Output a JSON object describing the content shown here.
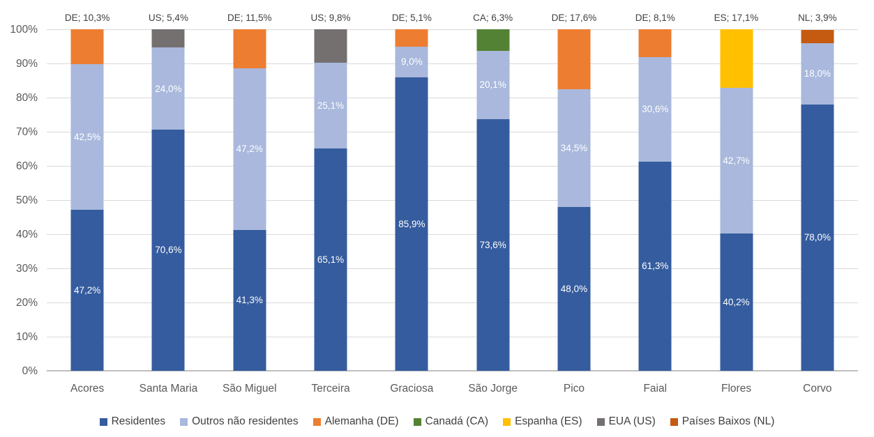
{
  "chart_data": {
    "type": "bar",
    "stacked": true,
    "percent_stacked": true,
    "title": "",
    "xlabel": "",
    "ylabel": "",
    "grid": true,
    "legend_position": "bottom",
    "y_axis": {
      "min": 0,
      "max": 100,
      "ticks": [
        {
          "value": 0,
          "label": "0%"
        },
        {
          "value": 10,
          "label": "10%"
        },
        {
          "value": 20,
          "label": "20%"
        },
        {
          "value": 30,
          "label": "30%"
        },
        {
          "value": 40,
          "label": "40%"
        },
        {
          "value": 50,
          "label": "50%"
        },
        {
          "value": 60,
          "label": "60%"
        },
        {
          "value": 70,
          "label": "70%"
        },
        {
          "value": 80,
          "label": "80%"
        },
        {
          "value": 90,
          "label": "90%"
        },
        {
          "value": 100,
          "label": "100%"
        }
      ]
    },
    "series": [
      {
        "name": "Residentes",
        "color": "#355C9E"
      },
      {
        "name": "Outros não residentes",
        "color": "#A9B8DC"
      },
      {
        "name": "Alemanha (DE)",
        "color": "#ED7D31"
      },
      {
        "name": "Canadá (CA)",
        "color": "#548235"
      },
      {
        "name": "Espanha (ES)",
        "color": "#FFC000"
      },
      {
        "name": "EUA (US)",
        "color": "#757070"
      },
      {
        "name": "Países Baixos (NL)",
        "color": "#C55A11"
      }
    ],
    "categories": [
      "Acores",
      "Santa Maria",
      "São Miguel",
      "Terceira",
      "Graciosa",
      "São Jorge",
      "Pico",
      "Faial",
      "Flores",
      "Corvo"
    ],
    "bars": [
      {
        "category": "Acores",
        "top_label": "DE; 10,3%",
        "segments": [
          {
            "series": "Residentes",
            "value": 47.2,
            "label": "47,2%"
          },
          {
            "series": "Outros não residentes",
            "value": 42.5,
            "label": "42,5%"
          },
          {
            "series": "Alemanha (DE)",
            "value": 10.3
          }
        ]
      },
      {
        "category": "Santa Maria",
        "top_label": "US; 5,4%",
        "segments": [
          {
            "series": "Residentes",
            "value": 70.6,
            "label": "70,6%"
          },
          {
            "series": "Outros não residentes",
            "value": 24.0,
            "label": "24,0%"
          },
          {
            "series": "EUA (US)",
            "value": 5.4
          }
        ]
      },
      {
        "category": "São Miguel",
        "top_label": "DE; 11,5%",
        "segments": [
          {
            "series": "Residentes",
            "value": 41.3,
            "label": "41,3%"
          },
          {
            "series": "Outros não residentes",
            "value": 47.2,
            "label": "47,2%"
          },
          {
            "series": "Alemanha (DE)",
            "value": 11.5
          }
        ]
      },
      {
        "category": "Terceira",
        "top_label": "US; 9,8%",
        "segments": [
          {
            "series": "Residentes",
            "value": 65.1,
            "label": "65,1%"
          },
          {
            "series": "Outros não residentes",
            "value": 25.1,
            "label": "25,1%"
          },
          {
            "series": "EUA (US)",
            "value": 9.8
          }
        ]
      },
      {
        "category": "Graciosa",
        "top_label": "DE; 5,1%",
        "segments": [
          {
            "series": "Residentes",
            "value": 85.9,
            "label": "85,9%"
          },
          {
            "series": "Outros não residentes",
            "value": 9.0,
            "label": "9,0%"
          },
          {
            "series": "Alemanha (DE)",
            "value": 5.1
          }
        ]
      },
      {
        "category": "São Jorge",
        "top_label": "CA; 6,3%",
        "segments": [
          {
            "series": "Residentes",
            "value": 73.6,
            "label": "73,6%"
          },
          {
            "series": "Outros não residentes",
            "value": 20.1,
            "label": "20,1%"
          },
          {
            "series": "Canadá (CA)",
            "value": 6.3
          }
        ]
      },
      {
        "category": "Pico",
        "top_label": "DE; 17,6%",
        "segments": [
          {
            "series": "Residentes",
            "value": 48.0,
            "label": "48,0%"
          },
          {
            "series": "Outros não residentes",
            "value": 34.5,
            "label": "34,5%"
          },
          {
            "series": "Alemanha (DE)",
            "value": 17.6
          }
        ]
      },
      {
        "category": "Faial",
        "top_label": "DE; 8,1%",
        "segments": [
          {
            "series": "Residentes",
            "value": 61.3,
            "label": "61,3%"
          },
          {
            "series": "Outros não residentes",
            "value": 30.6,
            "label": "30,6%"
          },
          {
            "series": "Alemanha (DE)",
            "value": 8.1
          }
        ]
      },
      {
        "category": "Flores",
        "top_label": "ES; 17,1%",
        "segments": [
          {
            "series": "Residentes",
            "value": 40.2,
            "label": "40,2%"
          },
          {
            "series": "Outros não residentes",
            "value": 42.7,
            "label": "42,7%"
          },
          {
            "series": "Espanha (ES)",
            "value": 17.1
          }
        ]
      },
      {
        "category": "Corvo",
        "top_label": "NL; 3,9%",
        "segments": [
          {
            "series": "Residentes",
            "value": 78.0,
            "label": "78,0%"
          },
          {
            "series": "Outros não residentes",
            "value": 18.0,
            "label": "18,0%"
          },
          {
            "series": "Países Baixos (NL)",
            "value": 3.9
          }
        ]
      }
    ]
  },
  "colors": {
    "gridline": "#d9d9d9",
    "axis_line": "#bfbfbf",
    "tick_label": "#595959",
    "category_label": "#595959",
    "data_label_inside": "#ffffff",
    "data_label_outside": "#404040",
    "background": "#ffffff"
  }
}
